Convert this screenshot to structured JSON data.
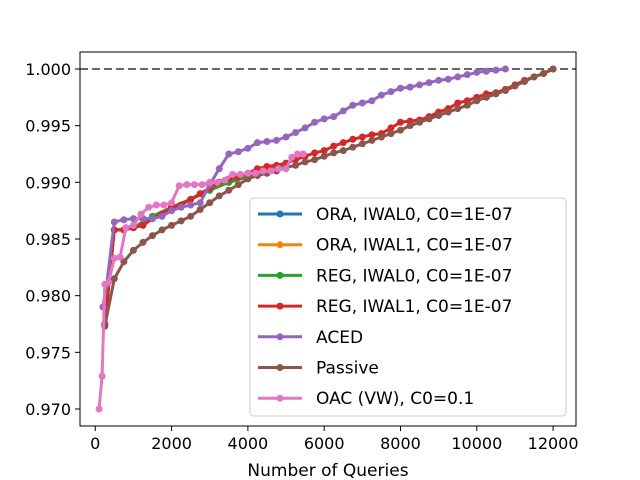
{
  "chart_data": {
    "type": "line",
    "title": "",
    "xlabel": "Number of Queries",
    "ylabel": "",
    "xlim": [
      -400,
      12600
    ],
    "ylim": [
      0.9685,
      1.0015
    ],
    "xticks": [
      0,
      2000,
      4000,
      6000,
      8000,
      10000,
      12000
    ],
    "yticks": [
      0.97,
      0.975,
      0.98,
      0.985,
      0.99,
      0.995,
      1.0
    ],
    "xtick_labels": [
      "0",
      "2000",
      "4000",
      "6000",
      "8000",
      "10000",
      "12000"
    ],
    "ytick_labels": [
      "0.970",
      "0.975",
      "0.980",
      "0.985",
      "0.990",
      "0.995",
      "1.000"
    ],
    "reference_line": {
      "y": 1.0,
      "style": "dashed",
      "color": "#666666"
    },
    "grid": false,
    "legend_position": "lower-right",
    "series": [
      {
        "name": "ORA, IWAL0, C0=1E-07",
        "color": "#1f77b4",
        "x": [
          250,
          500,
          750,
          1000,
          1500,
          2000,
          2500,
          3000,
          3500,
          4000,
          4500,
          5000
        ],
        "y": [
          0.9775,
          0.9858,
          0.9858,
          0.986,
          0.987,
          0.9878,
          0.9885,
          0.9893,
          0.99,
          0.9905,
          0.9912,
          0.9915
        ]
      },
      {
        "name": "ORA, IWAL1, C0=1E-07",
        "color": "#ff7f0e",
        "x": [
          250,
          500,
          750,
          1000,
          1500,
          2000,
          2500,
          3000,
          3500,
          4000,
          4500,
          5000
        ],
        "y": [
          0.9775,
          0.9858,
          0.9858,
          0.986,
          0.987,
          0.9878,
          0.9885,
          0.9893,
          0.99,
          0.9905,
          0.9912,
          0.9915
        ]
      },
      {
        "name": "REG, IWAL0, C0=1E-07",
        "color": "#2ca02c",
        "x": [
          250,
          500,
          750,
          1000,
          1500,
          2000,
          2500,
          3000,
          3500,
          4000,
          4500,
          5000
        ],
        "y": [
          0.9775,
          0.9858,
          0.9858,
          0.986,
          0.987,
          0.9878,
          0.9885,
          0.9893,
          0.99,
          0.9905,
          0.9912,
          0.9915
        ]
      },
      {
        "name": "REG, IWAL1, C0=1E-07",
        "color": "#d62728",
        "x": [
          250,
          500,
          750,
          1000,
          1250,
          1500,
          1750,
          2000,
          2250,
          2500,
          2750,
          3000,
          3250,
          3500,
          3750,
          4000,
          4250,
          4500,
          4750,
          5000,
          5250,
          5500,
          5750,
          6000,
          6250,
          6500,
          6750,
          7000,
          7250,
          7500,
          7750,
          8000,
          8250,
          8500,
          8750,
          9000,
          9250,
          9500,
          9750,
          10000,
          10250,
          10500,
          10750,
          11000,
          11250,
          11500,
          11750,
          12000
        ],
        "y": [
          0.9775,
          0.9858,
          0.9858,
          0.986,
          0.9862,
          0.9868,
          0.9872,
          0.9878,
          0.988,
          0.9885,
          0.989,
          0.9895,
          0.99,
          0.9903,
          0.9905,
          0.9908,
          0.9912,
          0.9914,
          0.9915,
          0.9917,
          0.992,
          0.9923,
          0.9926,
          0.9928,
          0.9932,
          0.9935,
          0.9938,
          0.994,
          0.9942,
          0.9943,
          0.9948,
          0.9953,
          0.9954,
          0.9955,
          0.9958,
          0.9962,
          0.9965,
          0.997,
          0.9972,
          0.9975,
          0.9978,
          0.9979,
          0.9982,
          0.9986,
          0.999,
          0.9993,
          0.9996,
          1.0
        ]
      },
      {
        "name": "ACED",
        "color": "#9467bd",
        "x": [
          200,
          300,
          500,
          750,
          1000,
          1250,
          1500,
          1750,
          2000,
          2250,
          2500,
          2750,
          3000,
          3250,
          3500,
          3750,
          4000,
          4250,
          4500,
          4750,
          5000,
          5250,
          5500,
          5750,
          6000,
          6250,
          6500,
          6750,
          7000,
          7250,
          7500,
          7750,
          8000,
          8250,
          8500,
          8750,
          9000,
          9250,
          9500,
          9750,
          10000,
          10250,
          10500,
          10750
        ],
        "y": [
          0.979,
          0.981,
          0.9865,
          0.9867,
          0.9868,
          0.9868,
          0.9868,
          0.987,
          0.9875,
          0.9878,
          0.988,
          0.9882,
          0.9898,
          0.9912,
          0.9925,
          0.9927,
          0.993,
          0.9935,
          0.9936,
          0.9937,
          0.994,
          0.9944,
          0.9948,
          0.9953,
          0.9956,
          0.9958,
          0.9963,
          0.9968,
          0.997,
          0.9972,
          0.9977,
          0.998,
          0.9983,
          0.9984,
          0.9986,
          0.9988,
          0.999,
          0.9991,
          0.9993,
          0.9995,
          0.9997,
          0.9998,
          0.9999,
          1.0
        ]
      },
      {
        "name": "Passive",
        "color": "#8c564b",
        "x": [
          250,
          500,
          750,
          1000,
          1250,
          1500,
          1750,
          2000,
          2250,
          2500,
          2750,
          3000,
          3250,
          3500,
          3750,
          4000,
          4250,
          4500,
          4750,
          5000,
          5250,
          5500,
          5750,
          6000,
          6250,
          6500,
          6750,
          7000,
          7250,
          7500,
          7750,
          8000,
          8250,
          8500,
          8750,
          9000,
          9250,
          9500,
          9750,
          10000,
          10250,
          10500,
          10750,
          11000,
          11250,
          11500,
          11750,
          12000
        ],
        "y": [
          0.9773,
          0.9815,
          0.983,
          0.984,
          0.9847,
          0.9853,
          0.9858,
          0.9862,
          0.9866,
          0.987,
          0.9876,
          0.9882,
          0.9888,
          0.9893,
          0.9898,
          0.9903,
          0.9906,
          0.9908,
          0.991,
          0.9913,
          0.9915,
          0.9918,
          0.992,
          0.9923,
          0.9926,
          0.9928,
          0.9931,
          0.9934,
          0.9937,
          0.994,
          0.9943,
          0.9946,
          0.995,
          0.9953,
          0.9956,
          0.9959,
          0.9962,
          0.9965,
          0.9968,
          0.9972,
          0.9975,
          0.9978,
          0.9981,
          0.9985,
          0.9989,
          0.9993,
          0.9996,
          1.0
        ]
      },
      {
        "name": "OAC (VW), C0=0.1",
        "color": "#e377c2",
        "x": [
          100,
          180,
          250,
          350,
          500,
          650,
          800,
          1000,
          1200,
          1400,
          1600,
          1800,
          2000,
          2200,
          2400,
          2600,
          2800,
          3000,
          3200,
          3400,
          3600,
          3800,
          4000,
          4200,
          4400,
          4600,
          4800,
          5000,
          5150,
          5300,
          5450
        ],
        "y": [
          0.97,
          0.9729,
          0.981,
          0.9812,
          0.9833,
          0.9834,
          0.986,
          0.9862,
          0.9872,
          0.9878,
          0.988,
          0.988,
          0.9882,
          0.9897,
          0.9898,
          0.9898,
          0.9898,
          0.99,
          0.99,
          0.9902,
          0.9907,
          0.9907,
          0.9908,
          0.9908,
          0.991,
          0.991,
          0.9912,
          0.9912,
          0.9922,
          0.9925,
          0.9925
        ]
      }
    ]
  }
}
